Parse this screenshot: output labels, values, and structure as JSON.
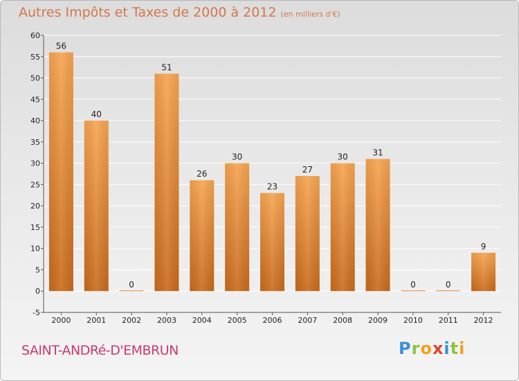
{
  "header": {
    "title": "Autres Impôts et Taxes de 2000 à 2012",
    "unit": "(en milliers d'€)"
  },
  "footer": {
    "commune": "SAINT-ANDRé-D'EMBRUN",
    "brand": [
      {
        "ch": "P",
        "color": "#3a8fd8"
      },
      {
        "ch": "r",
        "color": "#8cc43c"
      },
      {
        "ch": "o",
        "color": "#f0a020"
      },
      {
        "ch": "x",
        "color": "#e2432e"
      },
      {
        "ch": "i",
        "color": "#3a8fd8"
      },
      {
        "ch": "t",
        "color": "#8cc43c"
      },
      {
        "ch": "i",
        "color": "#f0a020"
      }
    ]
  },
  "chart_data": {
    "type": "bar",
    "title": "Autres Impôts et Taxes de 2000 à 2012",
    "subtitle": "(en milliers d'€)",
    "categories": [
      "2000",
      "2001",
      "2002",
      "2003",
      "2004",
      "2005",
      "2006",
      "2007",
      "2008",
      "2009",
      "2010",
      "2011",
      "2012"
    ],
    "values": [
      56,
      40,
      0,
      51,
      26,
      30,
      23,
      27,
      30,
      31,
      0,
      0,
      9
    ],
    "ylim": [
      -5,
      60
    ],
    "yticks": [
      -5,
      0,
      5,
      10,
      15,
      20,
      25,
      30,
      35,
      40,
      45,
      50,
      55,
      60
    ],
    "grid": true,
    "legend": "none",
    "bar_color": "#e8893a"
  }
}
